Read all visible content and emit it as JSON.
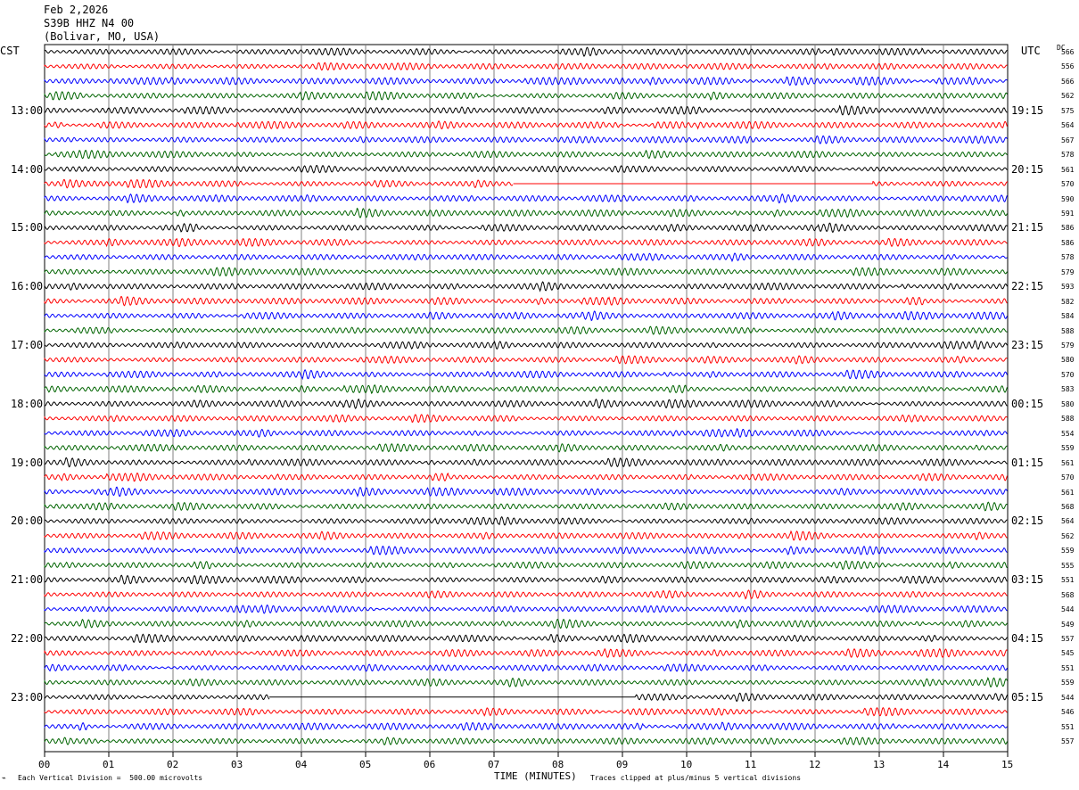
{
  "header": {
    "date": "Feb 2,2026",
    "station": "S39B HHZ N4 00",
    "location": "(Bolivar, MO, USA)"
  },
  "left_axis_label": "CST",
  "right_axis_label": "UTC",
  "dc_label": "DC",
  "footer": {
    "scale_note": "Each Vertical Division =  500.00 microvolts",
    "axis_title": "TIME (MINUTES)",
    "clip_note": "Traces clipped at plus/minus 5 vertical divisions"
  },
  "colors": [
    "#000000",
    "#ff0000",
    "#0000ff",
    "#006400"
  ],
  "chart_data": {
    "type": "line",
    "title": "S39B HHZ N4 00",
    "xlabel": "TIME (MINUTES)",
    "xlim": [
      0,
      15
    ],
    "x_ticks": [
      "00",
      "01",
      "02",
      "03",
      "04",
      "05",
      "06",
      "07",
      "08",
      "09",
      "10",
      "11",
      "12",
      "13",
      "14",
      "15"
    ],
    "cst_hour_labels": [
      "13:00",
      "14:00",
      "15:00",
      "16:00",
      "17:00",
      "18:00",
      "19:00",
      "20:00",
      "21:00",
      "22:00",
      "23:00"
    ],
    "utc_hour_labels": [
      "19:15",
      "20:15",
      "21:15",
      "22:15",
      "23:15",
      "00:15",
      "01:15",
      "02:15",
      "03:15",
      "04:15",
      "05:15"
    ],
    "dc_values": [
      "566",
      "556",
      "566",
      "562",
      "575",
      "564",
      "567",
      "578",
      "561",
      "570",
      "590",
      "591",
      "586",
      "586",
      "578",
      "579",
      "593",
      "582",
      "584",
      "588",
      "579",
      "580",
      "570",
      "583",
      "580",
      "588",
      "554",
      "559",
      "561",
      "570",
      "561",
      "568",
      "564",
      "562",
      "559",
      "555",
      "551",
      "568",
      "544",
      "549",
      "557",
      "545",
      "551",
      "559",
      "544",
      "546",
      "551",
      "557"
    ],
    "gaps": [
      {
        "trace": 9,
        "start_min": 7.3,
        "end_min": 12.9
      },
      {
        "trace": 44,
        "start_min": 3.5,
        "end_min": 9.2
      }
    ],
    "traces_per_hour": 4,
    "minutes_per_trace": 15,
    "grid": true
  }
}
